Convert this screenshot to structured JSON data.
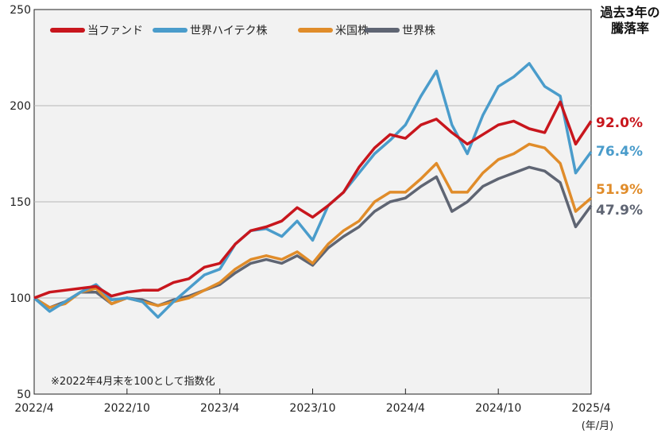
{
  "side_title": [
    "過去3年の",
    "騰落率"
  ],
  "chart_data": {
    "type": "line",
    "x": [
      "2022/4",
      "2022/5",
      "2022/6",
      "2022/7",
      "2022/8",
      "2022/9",
      "2022/10",
      "2022/11",
      "2022/12",
      "2023/1",
      "2023/2",
      "2023/3",
      "2023/4",
      "2023/5",
      "2023/6",
      "2023/7",
      "2023/8",
      "2023/9",
      "2023/10",
      "2023/11",
      "2023/12",
      "2024/1",
      "2024/2",
      "2024/3",
      "2024/4",
      "2024/5",
      "2024/6",
      "2024/7",
      "2024/8",
      "2024/9",
      "2024/10",
      "2024/11",
      "2024/12",
      "2025/1",
      "2025/2",
      "2025/3",
      "2025/4"
    ],
    "x_ticks": [
      "2022/4",
      "2022/10",
      "2023/4",
      "2023/10",
      "2024/4",
      "2024/10",
      "2025/4"
    ],
    "x_unit": "(年/月)",
    "y_ticks": [
      50,
      100,
      150,
      200,
      250
    ],
    "ylim": [
      50,
      250
    ],
    "grid": "horizontal",
    "legend_position": "top-left",
    "note": "※2022年4月末を100として指数化",
    "series": [
      {
        "name": "当ファンド",
        "color": "#c8161d",
        "end_label": "92.0%",
        "values": [
          100,
          103,
          104,
          105,
          106,
          101,
          103,
          104,
          104,
          108,
          110,
          116,
          118,
          128,
          135,
          137,
          140,
          147,
          142,
          148,
          155,
          168,
          178,
          185,
          183,
          190,
          193,
          186,
          180,
          185,
          190,
          192,
          188,
          186,
          202,
          180,
          192
        ]
      },
      {
        "name": "世界ハイテク株",
        "color": "#4a9ccb",
        "end_label": "76.4%",
        "values": [
          100,
          93,
          98,
          103,
          107,
          99,
          100,
          98,
          90,
          98,
          105,
          112,
          115,
          128,
          135,
          136,
          132,
          140,
          130,
          148,
          155,
          165,
          175,
          182,
          190,
          205,
          218,
          190,
          175,
          195,
          210,
          215,
          222,
          210,
          205,
          165,
          176
        ]
      },
      {
        "name": "米国株",
        "color": "#e08c2a",
        "end_label": "51.9%",
        "values": [
          100,
          95,
          97,
          103,
          105,
          97,
          100,
          98,
          96,
          98,
          100,
          104,
          108,
          115,
          120,
          122,
          120,
          124,
          118,
          128,
          135,
          140,
          150,
          155,
          155,
          162,
          170,
          155,
          155,
          165,
          172,
          175,
          180,
          178,
          170,
          145,
          152
        ]
      },
      {
        "name": "世界株",
        "color": "#5f6573",
        "end_label": "47.9%",
        "values": [
          100,
          95,
          98,
          103,
          103,
          97,
          100,
          99,
          96,
          99,
          101,
          104,
          107,
          113,
          118,
          120,
          118,
          122,
          117,
          126,
          132,
          137,
          145,
          150,
          152,
          158,
          163,
          145,
          150,
          158,
          162,
          165,
          168,
          166,
          160,
          137,
          148
        ]
      }
    ]
  }
}
